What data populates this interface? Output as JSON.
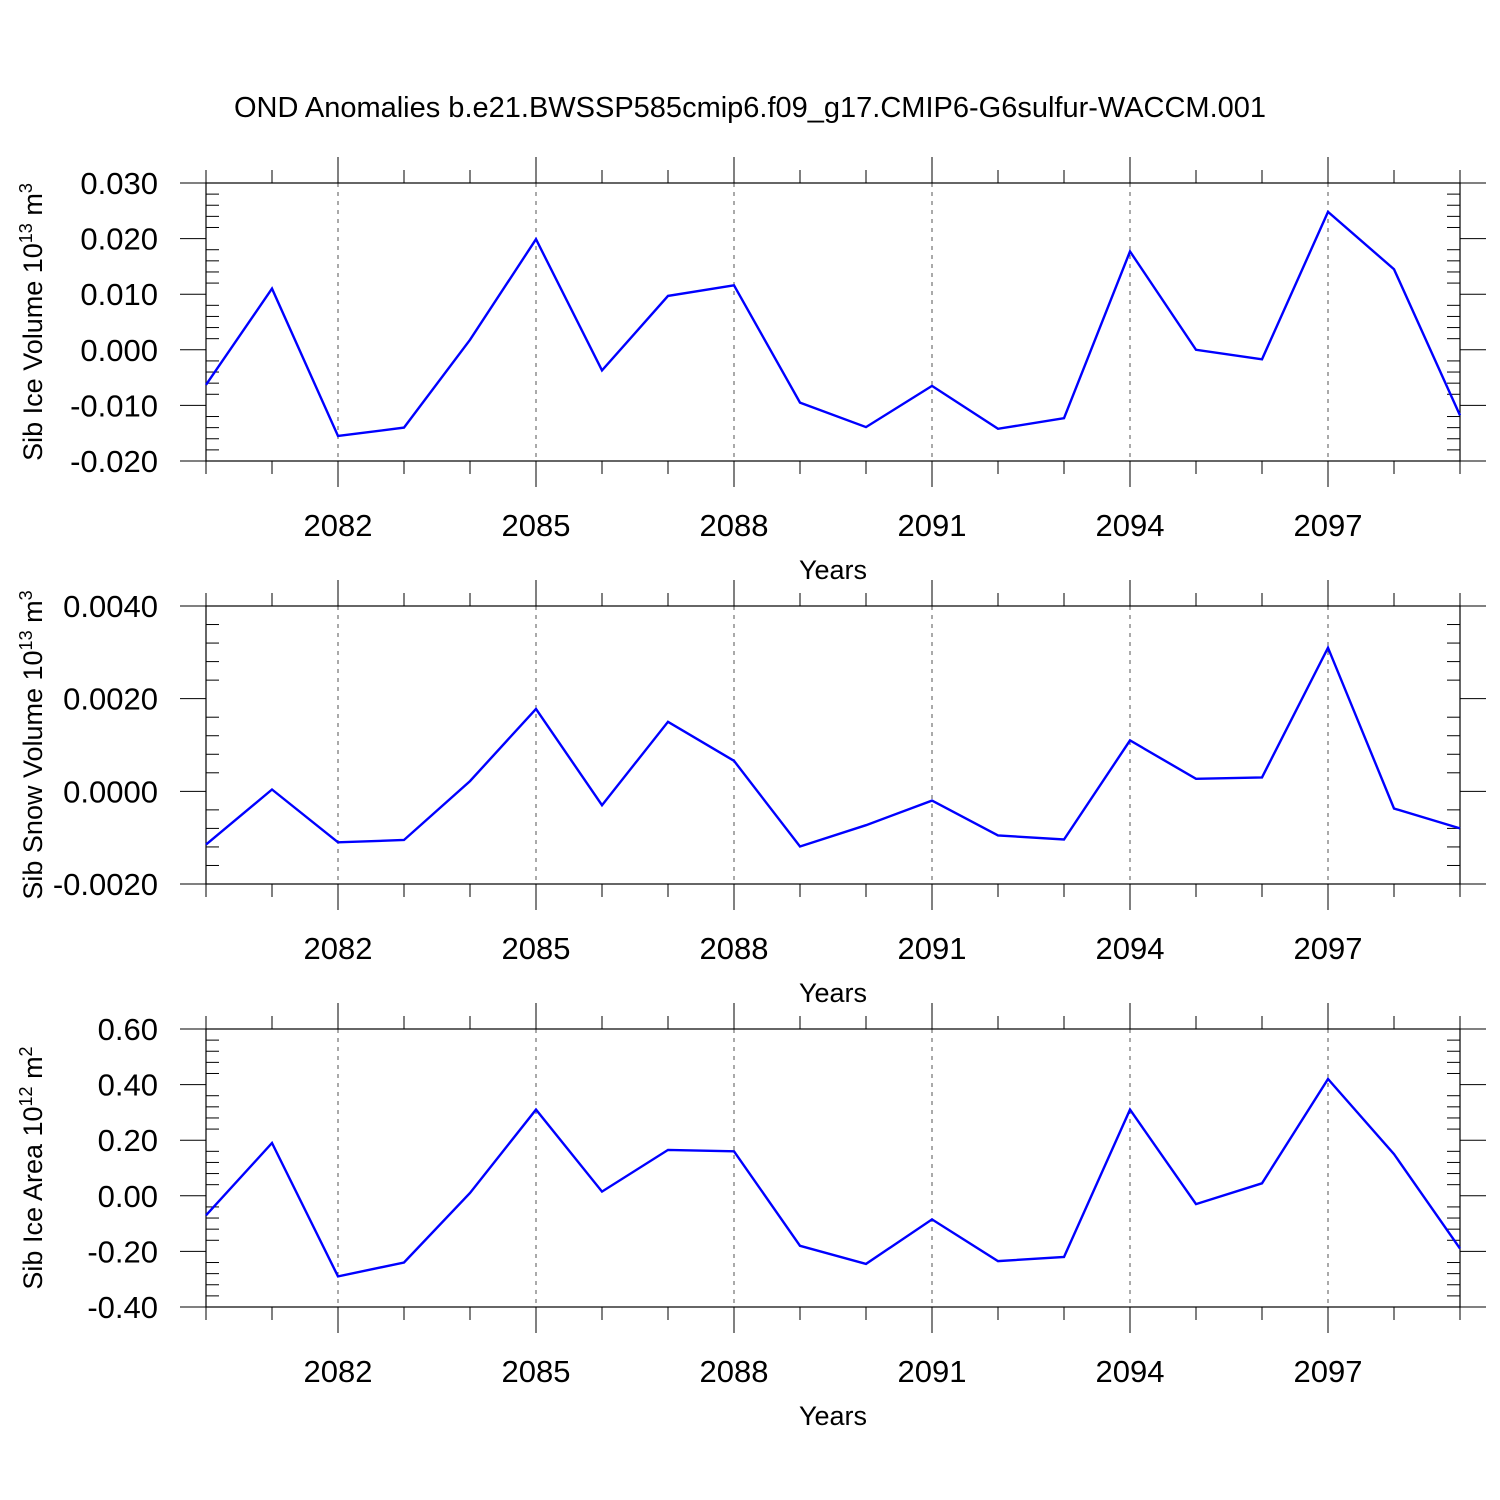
{
  "title": "OND Anomalies b.e21.BWSSP585cmip6.f09_g17.CMIP6-G6sulfur-WACCM.001",
  "colors": {
    "line": "#0000ff",
    "axis": "#000000",
    "grid": "#555555"
  },
  "chart_data": [
    {
      "type": "line",
      "ylabel": "Sib Ice Volume 10",
      "ylabel_sup_exp": "13",
      "ylabel_unit": "m",
      "ylabel_sup_unit": "3",
      "xlabel": "Years",
      "xlim": [
        2080,
        2099
      ],
      "ylim": [
        -0.02,
        0.03
      ],
      "yticks": [
        -0.02,
        -0.01,
        0.0,
        0.01,
        0.02,
        0.03
      ],
      "ytick_labels": [
        "-0.020",
        "-0.010",
        "0.000",
        "0.010",
        "0.020",
        "0.030"
      ],
      "xticks": [
        2082,
        2085,
        2088,
        2091,
        2094,
        2097
      ],
      "xtick_labels": [
        "2082",
        "2085",
        "2088",
        "2091",
        "2094",
        "2097"
      ],
      "grid": "vertical dashed at major x ticks",
      "x": [
        2080,
        2081,
        2082,
        2083,
        2084,
        2085,
        2086,
        2087,
        2088,
        2089,
        2090,
        2091,
        2092,
        2093,
        2094,
        2095,
        2096,
        2097,
        2098,
        2099
      ],
      "values": [
        -0.0063,
        0.011,
        -0.0155,
        -0.014,
        0.0018,
        0.0199,
        -0.0037,
        0.0097,
        0.0116,
        -0.0095,
        -0.0139,
        -0.0065,
        -0.0142,
        -0.0123,
        0.0177,
        0.0,
        -0.0017,
        0.0248,
        0.0145,
        -0.0118
      ]
    },
    {
      "type": "line",
      "ylabel": "Sib Snow Volume 10",
      "ylabel_sup_exp": "13",
      "ylabel_unit": "m",
      "ylabel_sup_unit": "3",
      "xlabel": "Years",
      "xlim": [
        2080,
        2099
      ],
      "ylim": [
        -0.002,
        0.004
      ],
      "yticks": [
        -0.002,
        0.0,
        0.002,
        0.004
      ],
      "ytick_labels": [
        "-0.0020",
        "0.0000",
        "0.0020",
        "0.0040"
      ],
      "xticks": [
        2082,
        2085,
        2088,
        2091,
        2094,
        2097
      ],
      "xtick_labels": [
        "2082",
        "2085",
        "2088",
        "2091",
        "2094",
        "2097"
      ],
      "grid": "vertical dashed at major x ticks",
      "x": [
        2080,
        2081,
        2082,
        2083,
        2084,
        2085,
        2086,
        2087,
        2088,
        2089,
        2090,
        2091,
        2092,
        2093,
        2094,
        2095,
        2096,
        2097,
        2098,
        2099
      ],
      "values": [
        -0.00115,
        4e-05,
        -0.0011,
        -0.00105,
        0.00022,
        0.00178,
        -0.0003,
        0.0015,
        0.00066,
        -0.00119,
        -0.00073,
        -0.0002,
        -0.00095,
        -0.00104,
        0.0011,
        0.00027,
        0.0003,
        0.0031,
        -0.00037,
        -0.0008
      ]
    },
    {
      "type": "line",
      "ylabel": "Sib Ice Area 10",
      "ylabel_sup_exp": "12",
      "ylabel_unit": "m",
      "ylabel_sup_unit": "2",
      "xlabel": "Years",
      "xlim": [
        2080,
        2099
      ],
      "ylim": [
        -0.4,
        0.6
      ],
      "yticks": [
        -0.4,
        -0.2,
        0.0,
        0.2,
        0.4,
        0.6
      ],
      "ytick_labels": [
        "-0.40",
        "-0.20",
        "0.00",
        "0.20",
        "0.40",
        "0.60"
      ],
      "xticks": [
        2082,
        2085,
        2088,
        2091,
        2094,
        2097
      ],
      "xtick_labels": [
        "2082",
        "2085",
        "2088",
        "2091",
        "2094",
        "2097"
      ],
      "grid": "vertical dashed at major x ticks",
      "x": [
        2080,
        2081,
        2082,
        2083,
        2084,
        2085,
        2086,
        2087,
        2088,
        2089,
        2090,
        2091,
        2092,
        2093,
        2094,
        2095,
        2096,
        2097,
        2098,
        2099
      ],
      "values": [
        -0.07,
        0.19,
        -0.29,
        -0.24,
        0.01,
        0.31,
        0.015,
        0.165,
        0.16,
        -0.18,
        -0.245,
        -0.085,
        -0.235,
        -0.22,
        0.31,
        -0.03,
        0.045,
        0.42,
        0.15,
        -0.19
      ]
    }
  ]
}
